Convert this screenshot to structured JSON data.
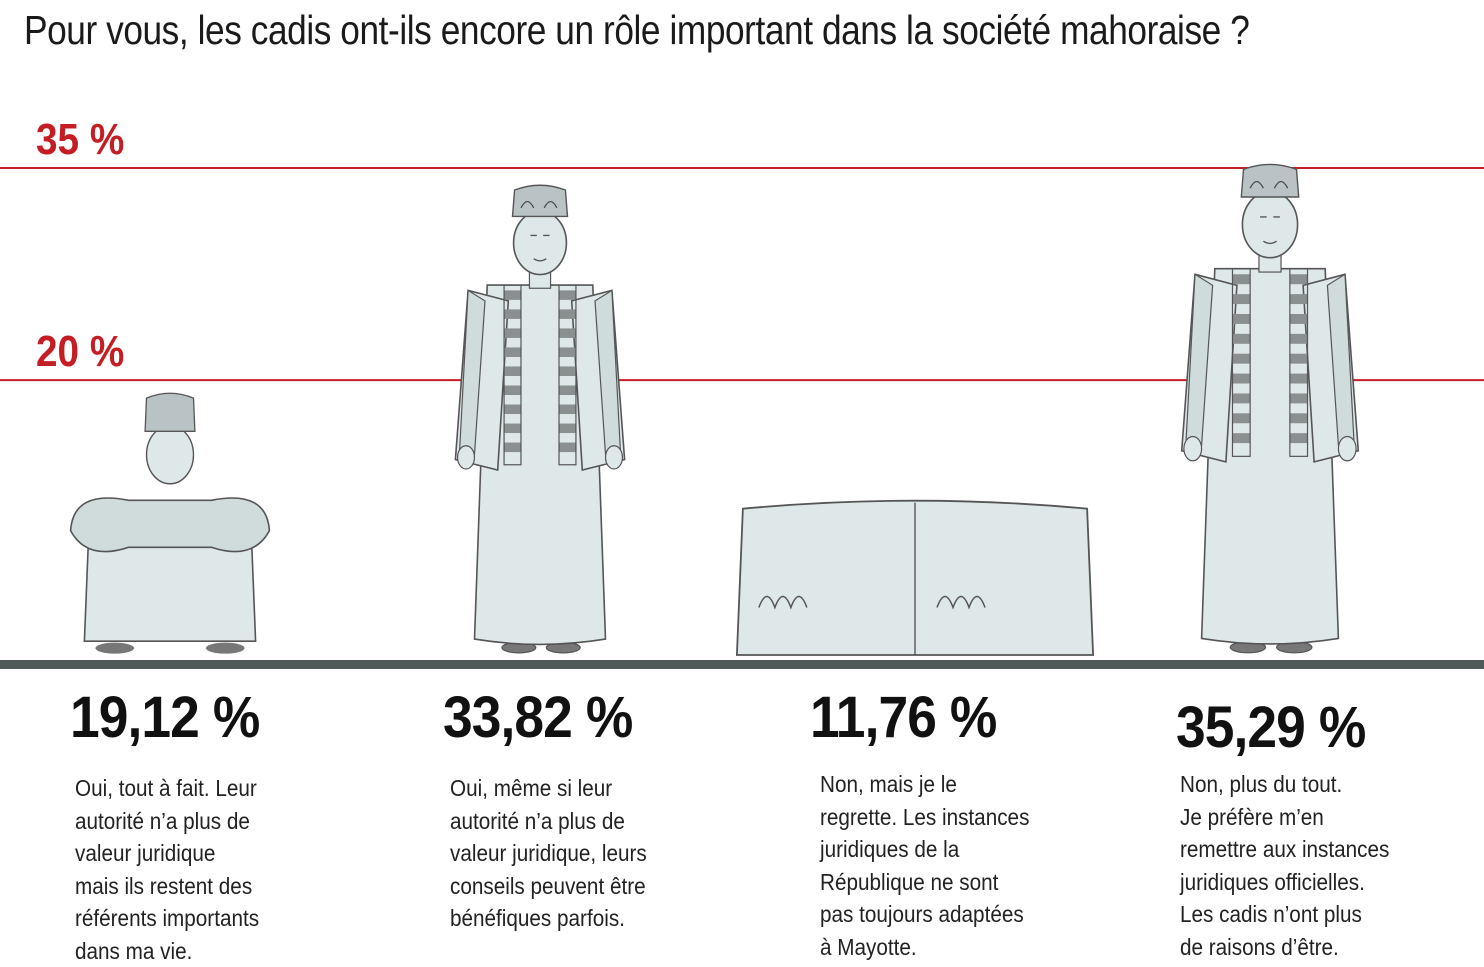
{
  "title": "Pour vous, les cadis ont-ils encore un rôle important dans la société mahoraise ?",
  "colors": {
    "reference_line": "#c41e24",
    "baseline": "#4f5b58",
    "figure_fill": "#dfe8e9",
    "figure_stroke": "#555555"
  },
  "chart_data": {
    "type": "bar",
    "title": "Pour vous, les cadis ont-ils encore un rôle important dans la société mahoraise ?",
    "reference_lines": [
      {
        "value": 35,
        "label": "35 %"
      },
      {
        "value": 20,
        "label": "20 %"
      }
    ],
    "categories": [
      "Oui, tout à fait. Leur\nautorité n’a plus de\nvaleur juridique\nmais ils restent des\nréférents importants\ndans ma vie.",
      "Oui, même si leur\nautorité n’a plus de\nvaleur juridique, leurs\nconseils peuvent être\nbénéfiques parfois.",
      "Non, mais je le\nregrette. Les instances\njuridiques de la\nRépublique ne sont\npas toujours adaptées\nà Mayotte.",
      "Non, plus du tout.\nJe préfère m’en\nremettre aux instances\njuridiques officielles.\nLes cadis n’ont plus\nde raisons d’être."
    ],
    "values": [
      19.12,
      33.82,
      11.76,
      35.29
    ],
    "value_labels": [
      "19,12 %",
      "33,82 %",
      "11,76 %",
      "35,29 %"
    ],
    "mark_style": "pictogram",
    "mark_icons": [
      "crouching-man-icon",
      "standing-man-icon",
      "kofia-cap-icon",
      "standing-man-icon"
    ],
    "ylim": [
      0,
      35.29
    ],
    "grid": false,
    "legend": "none"
  }
}
